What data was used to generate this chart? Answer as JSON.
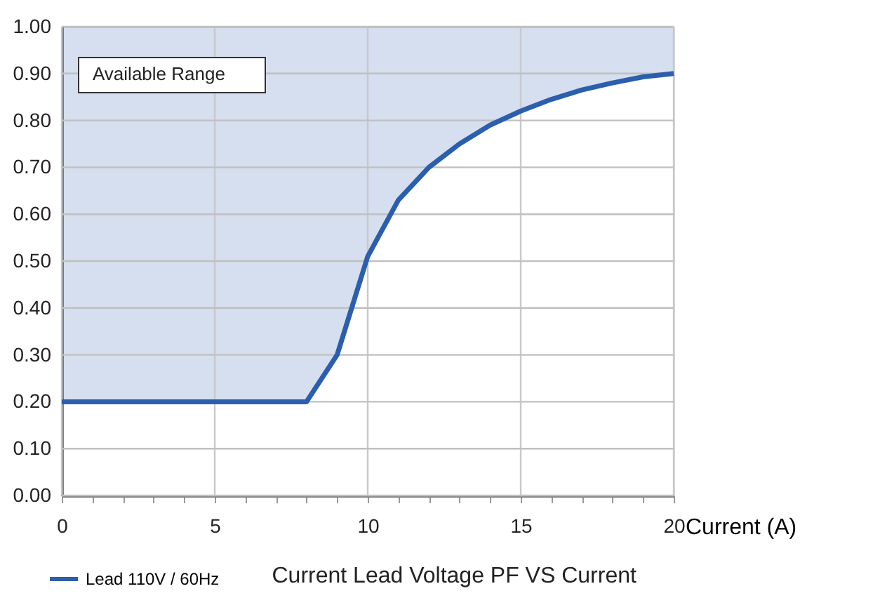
{
  "chart_data": {
    "type": "line",
    "title": "Current Lead Voltage PF VS Current",
    "xlabel": "Current (A)",
    "annotations": [
      "Available Range"
    ],
    "x": [
      0,
      8,
      9,
      10,
      11,
      12,
      13,
      14,
      15,
      16,
      17,
      18,
      19,
      20
    ],
    "series": [
      {
        "name": "Lead 110V / 60Hz",
        "color": "#2b5fad",
        "values": [
          0.2,
          0.2,
          0.3,
          0.51,
          0.63,
          0.7,
          0.75,
          0.79,
          0.82,
          0.845,
          0.865,
          0.88,
          0.893,
          0.9
        ],
        "lower": [
          0.2,
          0.2,
          0.3,
          0.51,
          0.63,
          0.7,
          0.75,
          0.79,
          0.82,
          0.845,
          0.865,
          0.88,
          0.893,
          0.9
        ],
        "upper": [
          1.0,
          1.0,
          1.0,
          1.0,
          1.0,
          1.0,
          1.0,
          1.0,
          1.0,
          1.0,
          1.0,
          1.0,
          1.0,
          1.0
        ]
      }
    ],
    "xlim": [
      0,
      20
    ],
    "xticks": [
      0,
      {
        "value": 1,
        "label": null
      },
      {
        "value": 2,
        "label": null
      },
      {
        "value": 3,
        "label": null
      },
      {
        "value": 4,
        "label": null
      },
      5,
      {
        "value": 6,
        "label": null
      },
      {
        "value": 7,
        "label": null
      },
      {
        "value": 8,
        "label": null
      },
      {
        "value": 9,
        "label": null
      },
      10,
      {
        "value": 11,
        "label": null
      },
      {
        "value": 12,
        "label": null
      },
      {
        "value": 13,
        "label": null
      },
      {
        "value": 14,
        "label": null
      },
      15,
      {
        "value": 16,
        "label": null
      },
      {
        "value": 17,
        "label": null
      },
      {
        "value": 18,
        "label": null
      },
      {
        "value": 19,
        "label": null
      },
      20
    ],
    "ylim": [
      0,
      1.0
    ],
    "yticks": [
      {
        "value": 0,
        "label": "0.00"
      },
      {
        "value": 0.1,
        "label": "0.10"
      },
      {
        "value": 0.2,
        "label": "0.20"
      },
      {
        "value": 0.3,
        "label": "0.30"
      },
      {
        "value": 0.4,
        "label": "0.40"
      },
      {
        "value": 0.5,
        "label": "0.50"
      },
      {
        "value": 0.6,
        "label": "0.60"
      },
      {
        "value": 0.7,
        "label": "0.70"
      },
      {
        "value": 0.8,
        "label": "0.80"
      },
      {
        "value": 0.9,
        "label": "0.90"
      },
      {
        "value": 1.0,
        "label": "1.00"
      }
    ],
    "grid": true,
    "legend": "bottom",
    "marker": "none",
    "line_style": "solid"
  }
}
